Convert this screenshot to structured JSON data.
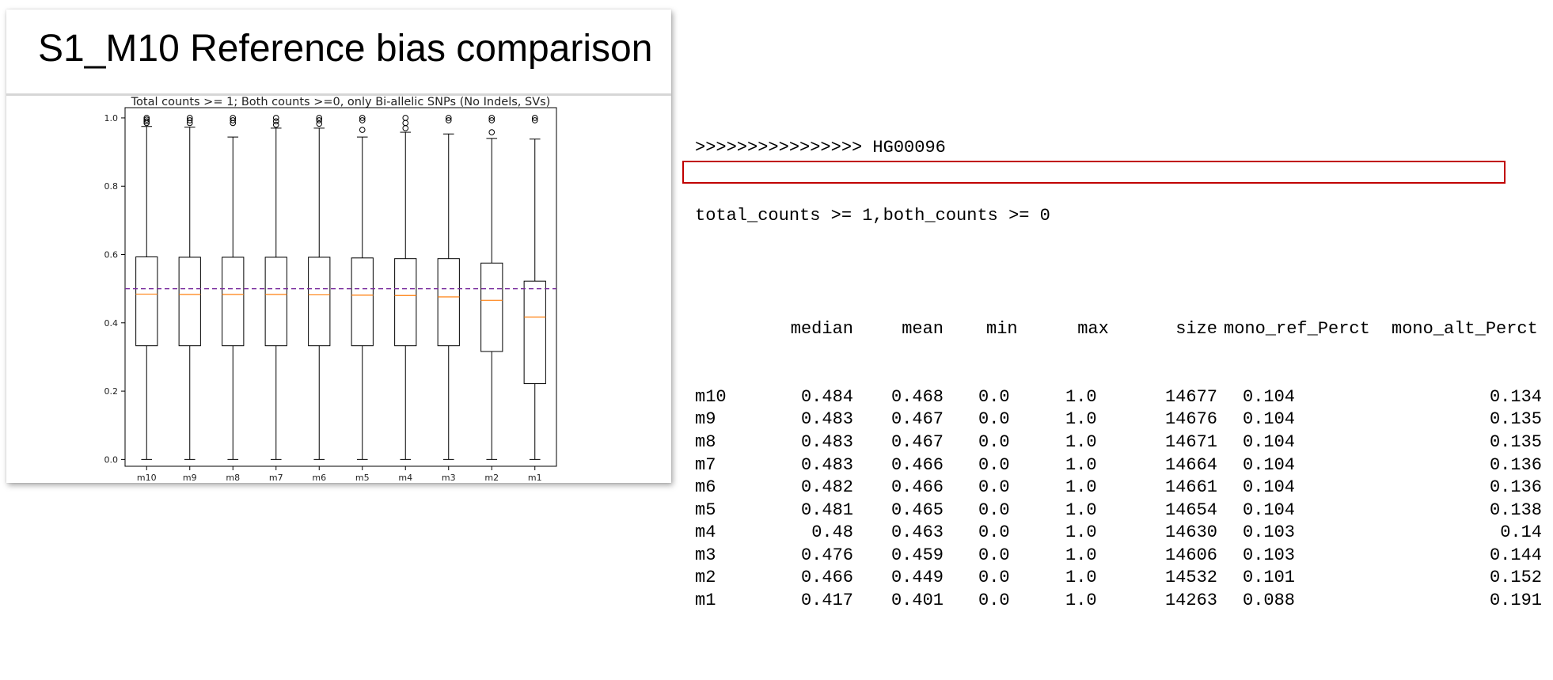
{
  "slide": {
    "title": "S1_M10 Reference bias comparison"
  },
  "chart_data": {
    "type": "boxplot",
    "title": "Total counts >= 1; Both counts >=0, only Bi-allelic SNPs (No Indels, SVs)",
    "xlabel": "",
    "ylabel": "",
    "ylim": [
      -0.02,
      1.03
    ],
    "yticks": [
      "0.0",
      "0.2",
      "0.4",
      "0.6",
      "0.8",
      "1.0"
    ],
    "reference_line": {
      "y": 0.5,
      "style": "dashed",
      "color": "#7b2f9e"
    },
    "colors": {
      "box": "#000000",
      "median": "#ff7f0e",
      "flier": "#000000"
    },
    "grid": false,
    "categories": [
      "m10",
      "m9",
      "m8",
      "m7",
      "m6",
      "m5",
      "m4",
      "m3",
      "m2",
      "m1"
    ],
    "boxes": [
      {
        "label": "m10",
        "whislo": 0.0,
        "q1": 0.333,
        "med": 0.484,
        "q3": 0.593,
        "whishi": 0.975,
        "fliers": [
          0.985,
          0.99,
          0.995,
          1.0
        ]
      },
      {
        "label": "m9",
        "whislo": 0.0,
        "q1": 0.333,
        "med": 0.483,
        "q3": 0.592,
        "whishi": 0.973,
        "fliers": [
          0.985,
          0.993,
          1.0
        ]
      },
      {
        "label": "m8",
        "whislo": 0.0,
        "q1": 0.333,
        "med": 0.483,
        "q3": 0.592,
        "whishi": 0.944,
        "fliers": [
          0.985,
          0.993,
          1.0
        ]
      },
      {
        "label": "m7",
        "whislo": 0.0,
        "q1": 0.333,
        "med": 0.483,
        "q3": 0.592,
        "whishi": 0.97,
        "fliers": [
          0.98,
          0.99,
          1.0
        ]
      },
      {
        "label": "m6",
        "whislo": 0.0,
        "q1": 0.333,
        "med": 0.482,
        "q3": 0.592,
        "whishi": 0.97,
        "fliers": [
          0.983,
          0.993,
          1.0
        ]
      },
      {
        "label": "m5",
        "whislo": 0.0,
        "q1": 0.333,
        "med": 0.481,
        "q3": 0.59,
        "whishi": 0.944,
        "fliers": [
          0.965,
          0.993,
          1.0
        ]
      },
      {
        "label": "m4",
        "whislo": 0.0,
        "q1": 0.333,
        "med": 0.48,
        "q3": 0.588,
        "whishi": 0.958,
        "fliers": [
          0.97,
          0.985,
          1.0
        ]
      },
      {
        "label": "m3",
        "whislo": 0.0,
        "q1": 0.333,
        "med": 0.476,
        "q3": 0.588,
        "whishi": 0.953,
        "fliers": [
          0.993,
          1.0
        ]
      },
      {
        "label": "m2",
        "whislo": 0.0,
        "q1": 0.316,
        "med": 0.466,
        "q3": 0.575,
        "whishi": 0.94,
        "fliers": [
          0.958,
          0.993,
          1.0
        ]
      },
      {
        "label": "m1",
        "whislo": 0.0,
        "q1": 0.222,
        "med": 0.417,
        "q3": 0.522,
        "whishi": 0.938,
        "fliers": [
          0.993,
          1.0
        ]
      }
    ]
  },
  "output": {
    "line1": ">>>>>>>>>>>>>>>> HG00096",
    "line2": "total_counts >= 1,both_counts >= 0",
    "headers": [
      "",
      "median",
      "mean",
      "min",
      "max",
      "size",
      "mono_ref_Perct",
      "mono_alt_Perct"
    ],
    "highlight_row": 0,
    "highlight_color": "#c00000",
    "rows": [
      [
        "m10",
        "0.484",
        "0.468",
        "0.0",
        "1.0",
        "14677",
        "0.104",
        "0.134"
      ],
      [
        "m9",
        "0.483",
        "0.467",
        "0.0",
        "1.0",
        "14676",
        "0.104",
        "0.135"
      ],
      [
        "m8",
        "0.483",
        "0.467",
        "0.0",
        "1.0",
        "14671",
        "0.104",
        "0.135"
      ],
      [
        "m7",
        "0.483",
        "0.466",
        "0.0",
        "1.0",
        "14664",
        "0.104",
        "0.136"
      ],
      [
        "m6",
        "0.482",
        "0.466",
        "0.0",
        "1.0",
        "14661",
        "0.104",
        "0.136"
      ],
      [
        "m5",
        "0.481",
        "0.465",
        "0.0",
        "1.0",
        "14654",
        "0.104",
        "0.138"
      ],
      [
        "m4",
        "0.48",
        "0.463",
        "0.0",
        "1.0",
        "14630",
        "0.103",
        "0.14"
      ],
      [
        "m3",
        "0.476",
        "0.459",
        "0.0",
        "1.0",
        "14606",
        "0.103",
        "0.144"
      ],
      [
        "m2",
        "0.466",
        "0.449",
        "0.0",
        "1.0",
        "14532",
        "0.101",
        "0.152"
      ],
      [
        "m1",
        "0.417",
        "0.401",
        "0.0",
        "1.0",
        "14263",
        "0.088",
        "0.191"
      ]
    ]
  }
}
